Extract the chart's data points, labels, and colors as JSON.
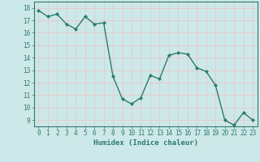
{
  "x": [
    0,
    1,
    2,
    3,
    4,
    5,
    6,
    7,
    8,
    9,
    10,
    11,
    12,
    13,
    14,
    15,
    16,
    17,
    18,
    19,
    20,
    21,
    22,
    23
  ],
  "y": [
    17.8,
    17.3,
    17.5,
    16.7,
    16.3,
    17.3,
    16.7,
    16.8,
    12.5,
    10.7,
    10.3,
    10.8,
    12.6,
    12.3,
    14.2,
    14.4,
    14.3,
    13.2,
    12.9,
    11.8,
    9.0,
    8.6,
    9.6,
    9.0
  ],
  "line_color": "#2d7b6e",
  "marker": "D",
  "marker_size": 2.0,
  "bg_color": "#cde8e8",
  "grid_color": "#e8c8c8",
  "xlabel": "Humidex (Indice chaleur)",
  "ylim": [
    8.5,
    18.5
  ],
  "xlim": [
    -0.5,
    23.5
  ],
  "yticks": [
    9,
    10,
    11,
    12,
    13,
    14,
    15,
    16,
    17,
    18
  ],
  "xticks": [
    0,
    1,
    2,
    3,
    4,
    5,
    6,
    7,
    8,
    9,
    10,
    11,
    12,
    13,
    14,
    15,
    16,
    17,
    18,
    19,
    20,
    21,
    22,
    23
  ],
  "tick_fontsize": 5.5,
  "xlabel_fontsize": 6.5,
  "line_width": 1.0
}
